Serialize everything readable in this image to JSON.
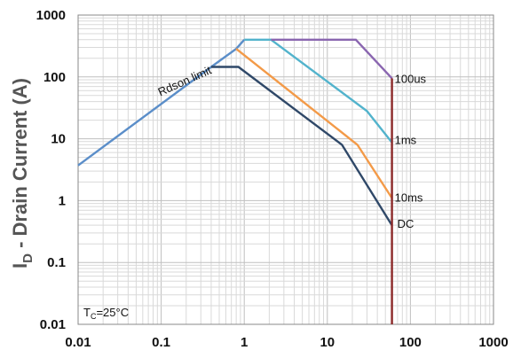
{
  "chart_data": {
    "type": "line",
    "title": "",
    "xlabel": "",
    "ylabel_main": "I",
    "ylabel_sub": "D",
    "ylabel_rest": " - Drain Current (A)",
    "x_scale": "log",
    "y_scale": "log",
    "xlim": [
      0.01,
      1000
    ],
    "ylim": [
      0.01,
      1000
    ],
    "grid": true,
    "x_ticks": [
      "0.01",
      "0.1",
      "1",
      "10",
      "100",
      "1000"
    ],
    "y_ticks": [
      "0.01",
      "0.1",
      "1",
      "10",
      "100",
      "1000"
    ],
    "series": [
      {
        "name": "Rdson limit",
        "color": "#5b8ec9",
        "points": [
          [
            0.01,
            3.7
          ],
          [
            0.4,
            145
          ],
          [
            0.8,
            285
          ],
          [
            1.0,
            400
          ]
        ]
      },
      {
        "name": "DC",
        "color": "#2f4868",
        "points": [
          [
            0.4,
            145
          ],
          [
            0.85,
            145
          ],
          [
            15,
            8
          ],
          [
            60,
            0.4
          ]
        ]
      },
      {
        "name": "10ms",
        "color": "#f39a48",
        "points": [
          [
            0.8,
            285
          ],
          [
            23,
            8
          ],
          [
            60,
            1.1
          ]
        ]
      },
      {
        "name": "1ms",
        "color": "#52b3cc",
        "points": [
          [
            1.0,
            400
          ],
          [
            2.1,
            400
          ],
          [
            30,
            28
          ],
          [
            60,
            8.7
          ]
        ]
      },
      {
        "name": "100us",
        "color": "#8a66b0",
        "points": [
          [
            2.1,
            400
          ],
          [
            22,
            400
          ],
          [
            60,
            95
          ]
        ]
      },
      {
        "name": "",
        "color": "#8c2a2a",
        "points": [
          [
            60,
            95
          ],
          [
            60,
            0.01
          ]
        ]
      }
    ],
    "annotations": {
      "rdson": "Rdson limit",
      "label_100us": "100us",
      "label_1ms": "1ms",
      "label_10ms": "10ms",
      "label_dc": "DC",
      "tc_main": "T",
      "tc_sub": "C",
      "tc_rest": "=25°C"
    }
  }
}
